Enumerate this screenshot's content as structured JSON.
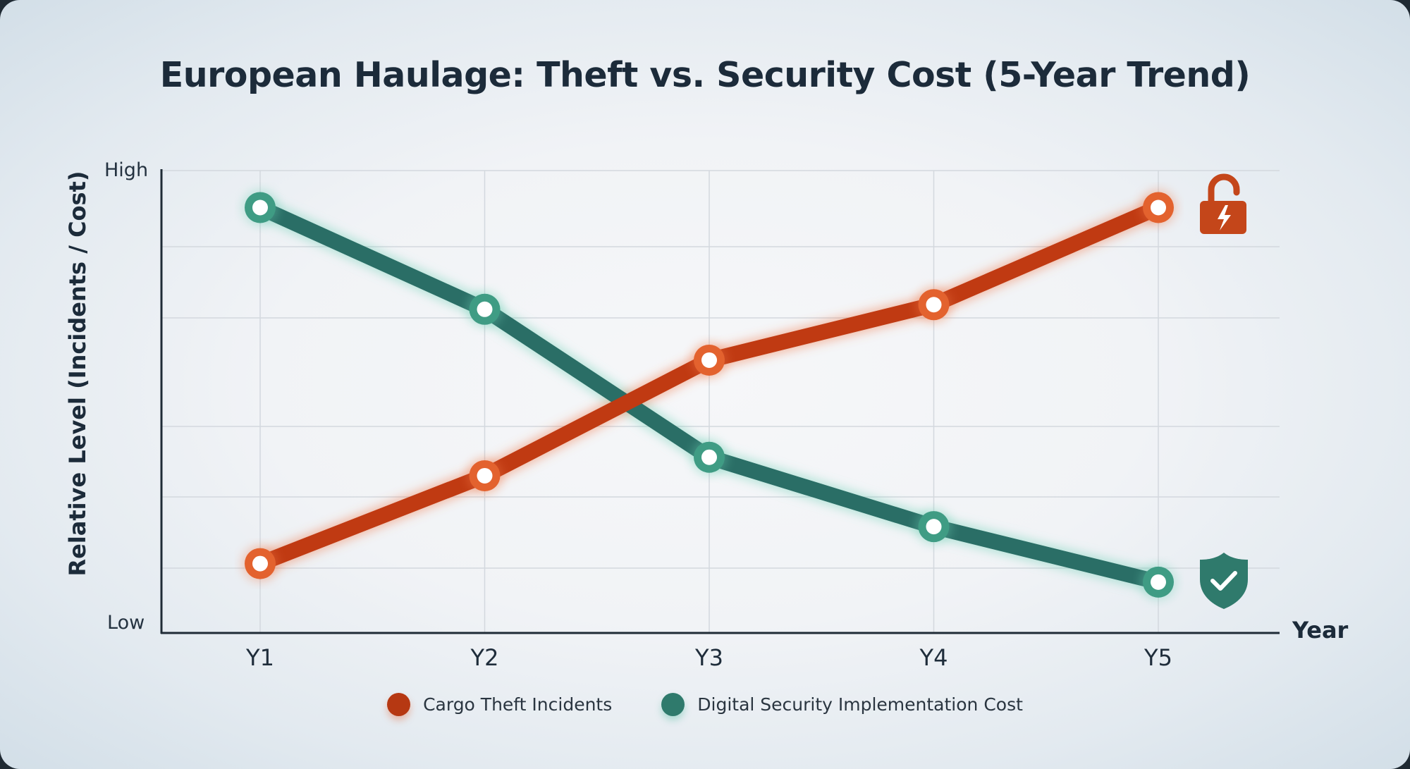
{
  "title": "European Haulage: Theft vs. Security Cost (5-Year Trend)",
  "axes": {
    "ylabel": "Relative Level (Incidents / Cost)",
    "ytick_high": "High",
    "ytick_low": "Low",
    "xlabel": "Year",
    "xticks": [
      "Y1",
      "Y2",
      "Y3",
      "Y4",
      "Y5"
    ]
  },
  "legend": {
    "items": [
      {
        "label": "Cargo Theft Incidents",
        "color": "#c03a12"
      },
      {
        "label": "Digital Security Implementation Cost",
        "color": "#2f7a6c"
      }
    ]
  },
  "icons": {
    "theft": "broken-padlock-icon",
    "security": "shield-check-icon"
  },
  "colors": {
    "theft": "#c03a12",
    "theft_marker": "#e3622e",
    "security": "#2a6e66",
    "security_marker": "#3f9c84",
    "text": "#1c2b3a",
    "grid": "#d5d9de",
    "axis": "#1f2b36"
  },
  "chart_data": {
    "type": "line",
    "title": "European Haulage: Theft vs. Security Cost (5-Year Trend)",
    "xlabel": "Year",
    "ylabel": "Relative Level (Incidents / Cost)",
    "categories": [
      "Y1",
      "Y2",
      "Y3",
      "Y4",
      "Y5"
    ],
    "y_tick_labels": {
      "0": "Low",
      "100": "High"
    },
    "ylim": [
      0,
      100
    ],
    "grid": true,
    "legend_position": "bottom",
    "series": [
      {
        "name": "Cargo Theft Incidents",
        "color": "#c03a12",
        "values": [
          15,
          34,
          59,
          71,
          92
        ]
      },
      {
        "name": "Digital Security Implementation Cost",
        "color": "#2a6e66",
        "values": [
          92,
          70,
          38,
          23,
          11
        ]
      }
    ]
  }
}
